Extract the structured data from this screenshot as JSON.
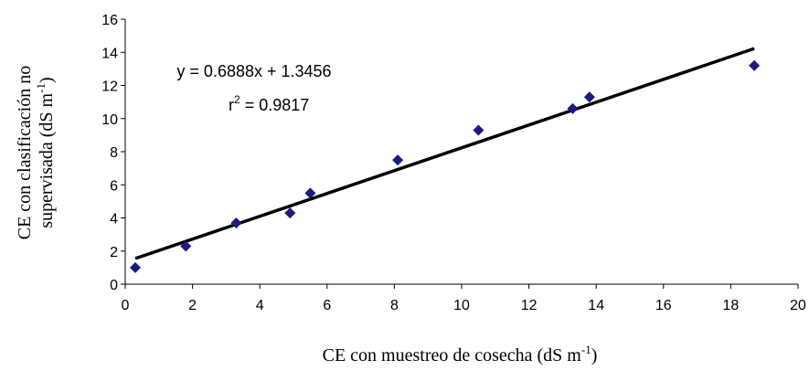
{
  "chart_data": {
    "type": "scatter",
    "title": "",
    "xlabel": {
      "base": "CE con muestreo de cosecha (dS m",
      "sup": "-1",
      "end": ")"
    },
    "ylabel": {
      "line1": "CE con clasificación no",
      "line2": {
        "base": "supervisada (dS m",
        "sup": "-1",
        "end": ")"
      }
    },
    "xlim": [
      0,
      20
    ],
    "ylim": [
      0,
      16
    ],
    "xticks": [
      0,
      2,
      4,
      6,
      8,
      10,
      12,
      14,
      16,
      18,
      20
    ],
    "yticks": [
      0,
      2,
      4,
      6,
      8,
      10,
      12,
      14,
      16
    ],
    "grid": false,
    "legend": "none",
    "marker": "diamond",
    "marker_color": "#1a1a80",
    "line_color": "#000000",
    "points": [
      {
        "x": 0.3,
        "y": 1.0
      },
      {
        "x": 1.8,
        "y": 2.3
      },
      {
        "x": 3.3,
        "y": 3.7
      },
      {
        "x": 4.9,
        "y": 4.3
      },
      {
        "x": 5.5,
        "y": 5.5
      },
      {
        "x": 8.1,
        "y": 7.5
      },
      {
        "x": 10.5,
        "y": 9.3
      },
      {
        "x": 13.3,
        "y": 10.6
      },
      {
        "x": 13.8,
        "y": 11.3
      },
      {
        "x": 18.7,
        "y": 13.2
      }
    ],
    "trendline": {
      "slope": 0.6888,
      "intercept": 1.3456,
      "x_range": [
        0.3,
        18.7
      ]
    },
    "annotations": {
      "equation": "y = 0.6888x + 1.3456",
      "r2": {
        "base": "r",
        "sup": "2",
        "rest": " = 0.9817"
      }
    }
  }
}
